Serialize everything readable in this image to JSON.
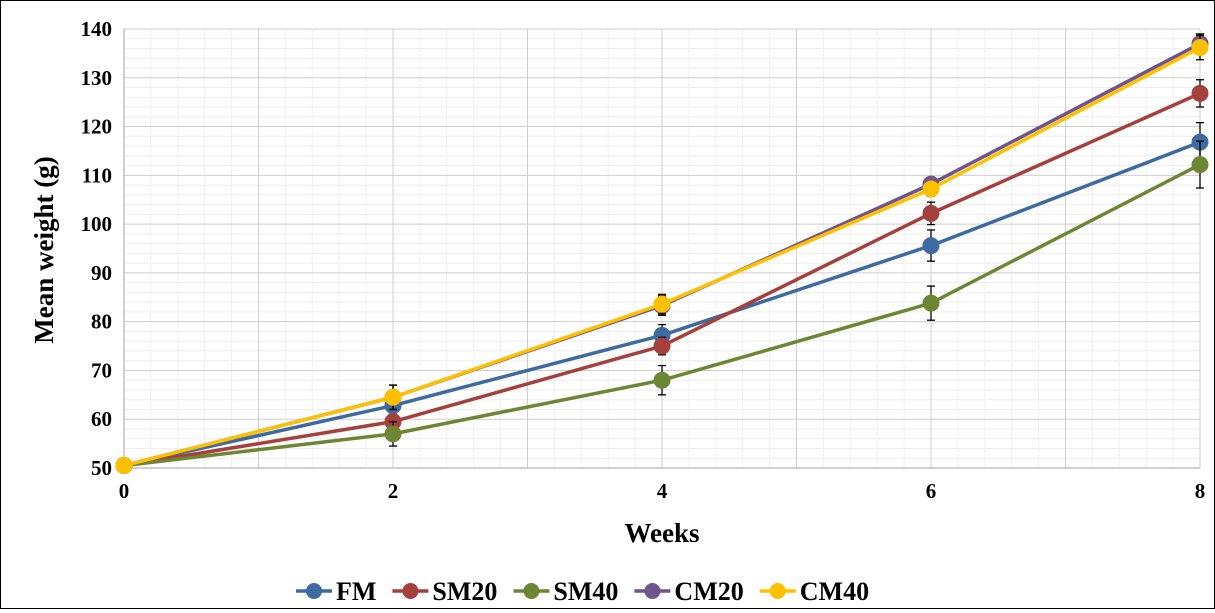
{
  "chart_data": {
    "type": "line",
    "title": "",
    "xlabel": "Weeks",
    "ylabel": "Mean weight (g)",
    "x": [
      0,
      2,
      4,
      6,
      8
    ],
    "xlim": [
      0,
      8
    ],
    "ylim": [
      50,
      140
    ],
    "x_ticks": [
      "0",
      "2",
      "4",
      "6",
      "8"
    ],
    "y_ticks": [
      "50",
      "60",
      "70",
      "80",
      "90",
      "100",
      "110",
      "120",
      "130",
      "140"
    ],
    "grid": true,
    "legend_position": "bottom",
    "error_bars": true,
    "series": [
      {
        "name": "FM",
        "color": "#3d6aa0",
        "values": [
          50.5,
          62.8,
          77.2,
          95.6,
          116.8
        ],
        "errors": [
          0.5,
          1.5,
          2.2,
          3.2,
          4.0
        ]
      },
      {
        "name": "SM20",
        "color": "#a5403d",
        "values": [
          50.5,
          59.5,
          75.0,
          102.2,
          126.8
        ],
        "errors": [
          0.5,
          1.4,
          1.8,
          2.3,
          2.8
        ]
      },
      {
        "name": "SM40",
        "color": "#6e8634",
        "values": [
          50.5,
          57.0,
          68.0,
          83.8,
          112.2
        ],
        "errors": [
          0.5,
          2.5,
          3.0,
          3.5,
          4.8
        ]
      },
      {
        "name": "CM20",
        "color": "#6f548e",
        "values": [
          50.5,
          64.5,
          83.3,
          108.2,
          137.0
        ],
        "errors": [
          0.5,
          2.5,
          2.0,
          1.0,
          2.0
        ]
      },
      {
        "name": "CM40",
        "color": "#ffc000",
        "values": [
          50.5,
          64.5,
          83.6,
          107.2,
          136.2
        ],
        "errors": [
          0.5,
          2.5,
          2.0,
          1.5,
          2.5
        ]
      }
    ]
  }
}
